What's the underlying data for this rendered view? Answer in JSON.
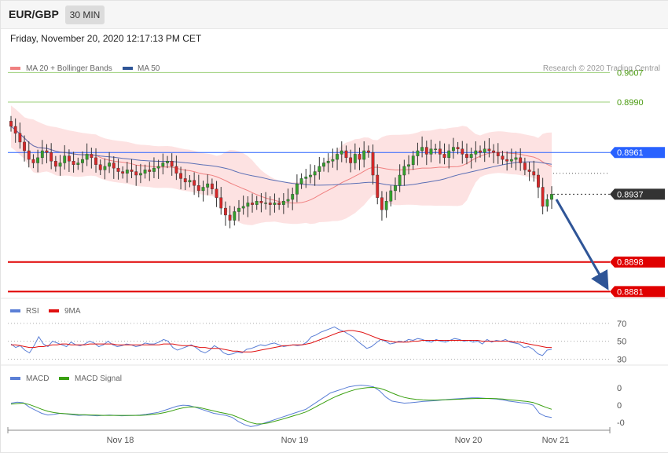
{
  "header": {
    "pair": "EUR/GBP",
    "timeframe": "30 MIN",
    "datetime": "Friday, November 20, 2020 12:17:13 PM CET"
  },
  "legends": {
    "main": [
      {
        "label": "MA 20 + Bollinger Bands",
        "color": "#f08080"
      },
      {
        "label": "MA 50",
        "color": "#2f5597"
      }
    ],
    "copyright": "Research © 2020 Trading Central",
    "rsi": [
      {
        "label": "RSI",
        "color": "#5b7fd6"
      },
      {
        "label": "9MA",
        "color": "#e01010"
      }
    ],
    "macd": [
      {
        "label": "MACD",
        "color": "#5b7fd6"
      },
      {
        "label": "MACD Signal",
        "color": "#3aa010"
      }
    ]
  },
  "colors": {
    "up": "#33a02c",
    "down": "#d62728",
    "support": "#e00000",
    "pivot": "#2962ff",
    "target": "#70ad47",
    "arrow": "#2f5597",
    "bands": "#fde2e2",
    "ma20": "#f08080",
    "ma50": "#5b6fb5"
  },
  "chart_data": [
    {
      "type": "candlestick",
      "instrument": "EUR/GBP",
      "timeframe": "30 MIN",
      "x_ticks": [
        "Nov 18",
        "Nov 19",
        "Nov 20",
        "Nov 21"
      ],
      "ylim": [
        0.8878,
        0.9018
      ],
      "levels": [
        {
          "value": 0.9007,
          "label": "0.9007",
          "kind": "target"
        },
        {
          "value": 0.899,
          "label": "0.8990",
          "kind": "target"
        },
        {
          "value": 0.8961,
          "label": "0.8961",
          "kind": "pivot"
        },
        {
          "value": 0.8937,
          "label": "0.8937",
          "kind": "last_price"
        },
        {
          "value": 0.8898,
          "label": "0.8898",
          "kind": "support"
        },
        {
          "value": 0.8881,
          "label": "0.8881",
          "kind": "support"
        }
      ],
      "close": [
        0.8976,
        0.8972,
        0.8967,
        0.8962,
        0.8957,
        0.8955,
        0.8958,
        0.8962,
        0.8961,
        0.8956,
        0.8953,
        0.8955,
        0.8959,
        0.8956,
        0.8954,
        0.8955,
        0.8957,
        0.896,
        0.8958,
        0.8954,
        0.8951,
        0.8953,
        0.8955,
        0.8952,
        0.895,
        0.8949,
        0.8951,
        0.895,
        0.8948,
        0.8949,
        0.8951,
        0.895,
        0.8952,
        0.8953,
        0.8955,
        0.8956,
        0.8953,
        0.8949,
        0.8946,
        0.8944,
        0.8945,
        0.8942,
        0.8939,
        0.8941,
        0.8943,
        0.894,
        0.8935,
        0.8929,
        0.8925,
        0.8922,
        0.8927,
        0.8929,
        0.893,
        0.8932,
        0.8931,
        0.8933,
        0.8932,
        0.8932,
        0.8931,
        0.8932,
        0.8931,
        0.8933,
        0.8934,
        0.8937,
        0.8943,
        0.8946,
        0.8947,
        0.8948,
        0.895,
        0.8953,
        0.8955,
        0.8956,
        0.8957,
        0.896,
        0.8962,
        0.8958,
        0.8955,
        0.896,
        0.8957,
        0.8962,
        0.8961,
        0.8948,
        0.8935,
        0.8928,
        0.8933,
        0.8939,
        0.8942,
        0.8948,
        0.8953,
        0.8954,
        0.8959,
        0.8962,
        0.8964,
        0.896,
        0.8963,
        0.8963,
        0.896,
        0.8958,
        0.8962,
        0.8964,
        0.8963,
        0.896,
        0.8958,
        0.896,
        0.8962,
        0.8961,
        0.8963,
        0.8962,
        0.8961,
        0.8959,
        0.8957,
        0.8956,
        0.8957,
        0.8958,
        0.8955,
        0.8951,
        0.895,
        0.8948,
        0.8941,
        0.893,
        0.8934,
        0.8937
      ],
      "series": [
        {
          "name": "MA 20 + Bollinger Bands"
        },
        {
          "name": "MA 50"
        }
      ]
    },
    {
      "type": "line",
      "panel": "RSI",
      "ylim": [
        26,
        76
      ],
      "y_ticks": [
        70,
        50,
        30
      ],
      "series": [
        {
          "name": "RSI",
          "values": [
            47,
            43,
            45,
            40,
            37,
            45,
            55,
            47,
            44,
            50,
            48,
            46,
            44,
            49,
            46,
            45,
            47,
            50,
            48,
            44,
            46,
            50,
            46,
            44,
            45,
            47,
            46,
            44,
            45,
            48,
            47,
            47,
            49,
            52,
            50,
            43,
            40,
            42,
            44,
            46,
            43,
            39,
            37,
            40,
            45,
            42,
            37,
            35,
            36,
            38,
            37,
            41,
            42,
            44,
            46,
            45,
            47,
            48,
            46,
            44,
            45,
            46,
            45,
            46,
            49,
            55,
            57,
            60,
            62,
            64,
            66,
            63,
            61,
            58,
            55,
            50,
            46,
            42,
            44,
            48,
            52,
            50,
            47,
            48,
            50,
            49,
            52,
            51,
            53,
            52,
            50,
            49,
            52,
            50,
            49,
            51,
            53,
            52,
            50,
            51,
            49,
            50,
            47,
            52,
            49,
            51,
            50,
            52,
            49,
            48,
            47,
            43,
            44,
            41,
            36,
            34,
            40,
            41
          ]
        },
        {
          "name": "9MA",
          "values": [
            46,
            46,
            45,
            44,
            43,
            43,
            44,
            44,
            45,
            46,
            46,
            47,
            47,
            46,
            46,
            46,
            46,
            47,
            47,
            47,
            47,
            47,
            47,
            46,
            46,
            46,
            46,
            46,
            46,
            46,
            46,
            46,
            46,
            47,
            47,
            47,
            46,
            45,
            45,
            45,
            44,
            43,
            43,
            42,
            42,
            42,
            41,
            40,
            39,
            39,
            38,
            38,
            38,
            39,
            40,
            41,
            42,
            43,
            44,
            45,
            45,
            46,
            46,
            46,
            47,
            48,
            50,
            52,
            54,
            56,
            58,
            60,
            61,
            62,
            62,
            61,
            60,
            58,
            56,
            54,
            52,
            51,
            50,
            49,
            49,
            49,
            49,
            50,
            50,
            51,
            51,
            51,
            51,
            51,
            51,
            51,
            51,
            51,
            51,
            51,
            51,
            51,
            50,
            50,
            50,
            50,
            50,
            50,
            50,
            49,
            49,
            48,
            47,
            46,
            45,
            44,
            43,
            43
          ]
        }
      ]
    },
    {
      "type": "line",
      "panel": "MACD",
      "y_ticks": [
        "0",
        "0",
        "-0"
      ],
      "series": [
        {
          "name": "MACD",
          "values": [
            0.0004,
            0.00045,
            0.00042,
            0.0002,
            5e-05,
            -0.0001,
            -0.00018,
            -0.00015,
            -0.0001,
            -0.00013,
            -0.00017,
            -0.0002,
            -0.00018,
            -0.0002,
            -0.00022,
            -0.0002,
            -0.00018,
            -0.0002,
            -0.00022,
            -0.00021,
            -0.0002,
            -0.00018,
            -0.00015,
            -0.0001,
            -5e-05,
            5e-05,
            0.00015,
            0.00025,
            0.0003,
            0.00028,
            0.0002,
            0.0001,
            0.0,
            -0.0001,
            -0.00015,
            -0.0002,
            -0.0003,
            -0.0005,
            -0.00065,
            -0.00075,
            -0.0007,
            -0.0006,
            -0.0005,
            -0.0004,
            -0.0003,
            -0.0002,
            -0.0001,
            0.0,
            0.0001,
            0.0003,
            0.0005,
            0.0007,
            0.0009,
            0.001,
            0.0011,
            0.0012,
            0.00125,
            0.00128,
            0.00125,
            0.0012,
            0.001,
            0.0007,
            0.0005,
            0.00045,
            0.0004,
            0.00042,
            0.00045,
            0.00048,
            0.0005,
            0.00052,
            0.00055,
            0.00058,
            0.0006,
            0.00062,
            0.00064,
            0.00066,
            0.00066,
            0.00064,
            0.00062,
            0.0006,
            0.00056,
            0.0005,
            0.00046,
            0.00042,
            0.0004,
            0.0003,
            -0.0001,
            -0.00025,
            -0.0003
          ]
        },
        {
          "name": "MACD Signal",
          "values": [
            0.00035,
            0.00038,
            0.0004,
            0.00033,
            0.00022,
            0.0001,
            0.0,
            -6e-05,
            -0.0001,
            -0.00012,
            -0.00014,
            -0.00016,
            -0.00017,
            -0.00018,
            -0.00019,
            -0.0002,
            -0.0002,
            -0.0002,
            -0.0002,
            -0.0002,
            -0.0002,
            -0.0002,
            -0.00018,
            -0.00015,
            -0.00012,
            -6e-05,
            1e-05,
            0.0001,
            0.00017,
            0.00022,
            0.00021,
            0.00016,
            9e-05,
            2e-05,
            -5e-05,
            -0.00011,
            -0.00018,
            -0.0003,
            -0.00043,
            -0.00055,
            -0.00062,
            -0.00061,
            -0.00056,
            -0.00048,
            -0.0004,
            -0.00031,
            -0.00022,
            -0.00013,
            -3e-05,
            0.00012,
            0.00028,
            0.00044,
            0.0006,
            0.00074,
            0.00086,
            0.00097,
            0.00106,
            0.00112,
            0.00116,
            0.00117,
            0.00113,
            0.00103,
            0.0009,
            0.00078,
            0.00068,
            0.00062,
            0.00058,
            0.00056,
            0.00055,
            0.00055,
            0.00056,
            0.00057,
            0.00058,
            0.00059,
            0.00061,
            0.00062,
            0.00063,
            0.00063,
            0.00063,
            0.00062,
            0.0006,
            0.00057,
            0.00054,
            0.00051,
            0.00048,
            0.00043,
            0.00032,
            0.0002,
            0.0001
          ]
        }
      ]
    }
  ]
}
